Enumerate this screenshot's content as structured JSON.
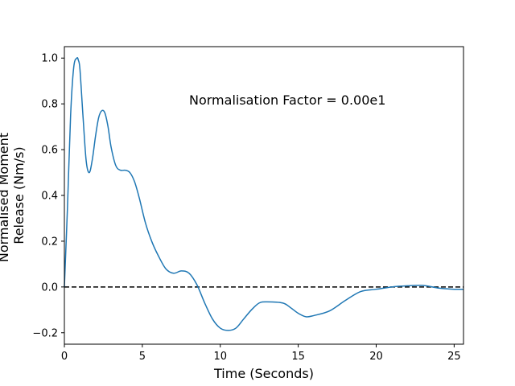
{
  "chart_data": {
    "type": "line",
    "xlabel": "Time (Seconds)",
    "ylabel": [
      "Normalised Moment",
      "Release (Nm/s)"
    ],
    "xlim": [
      0,
      25.6
    ],
    "ylim": [
      -0.25,
      1.05
    ],
    "xticks": [
      0,
      5,
      10,
      15,
      20,
      25
    ],
    "yticks": [
      -0.2,
      0.0,
      0.2,
      0.4,
      0.6,
      0.8,
      1.0
    ],
    "ytick_labels": [
      "−0.2",
      "0.0",
      "0.2",
      "0.4",
      "0.6",
      "0.8",
      "1.0"
    ],
    "grid": false,
    "annotation": {
      "text": "Normalisation Factor = 0.00e1",
      "x": 8.0,
      "y": 0.8
    },
    "reference_line": {
      "y": 0.0,
      "style": "dashed",
      "color": "#000000"
    },
    "series": [
      {
        "color": "#1f77b4",
        "x": [
          0,
          0.2,
          0.4,
          0.6,
          0.8,
          0.9,
          1.0,
          1.2,
          1.4,
          1.6,
          1.8,
          2.0,
          2.2,
          2.4,
          2.6,
          2.8,
          3.0,
          3.3,
          3.6,
          3.9,
          4.2,
          4.5,
          4.8,
          5.2,
          5.6,
          6.0,
          6.5,
          7.0,
          7.5,
          8.0,
          8.5,
          9.0,
          9.5,
          10.0,
          10.5,
          11.0,
          11.5,
          12.0,
          12.5,
          13.0,
          14.0,
          14.5,
          15.0,
          15.5,
          16.0,
          17.0,
          18.0,
          19.0,
          20.0,
          21.0,
          22.0,
          23.0,
          24.0,
          25.0,
          25.6
        ],
        "y": [
          0.0,
          0.35,
          0.75,
          0.96,
          1.0,
          0.99,
          0.95,
          0.74,
          0.55,
          0.5,
          0.56,
          0.66,
          0.74,
          0.77,
          0.76,
          0.7,
          0.61,
          0.53,
          0.51,
          0.51,
          0.5,
          0.46,
          0.39,
          0.28,
          0.2,
          0.14,
          0.08,
          0.06,
          0.07,
          0.06,
          0.01,
          -0.07,
          -0.14,
          -0.18,
          -0.19,
          -0.18,
          -0.14,
          -0.1,
          -0.07,
          -0.065,
          -0.07,
          -0.09,
          -0.115,
          -0.13,
          -0.125,
          -0.105,
          -0.06,
          -0.02,
          -0.01,
          0.0,
          0.005,
          0.007,
          -0.005,
          -0.01,
          -0.01
        ]
      }
    ]
  },
  "colors": {
    "series": "#1f77b4",
    "axis": "#000000",
    "background": "#ffffff"
  }
}
